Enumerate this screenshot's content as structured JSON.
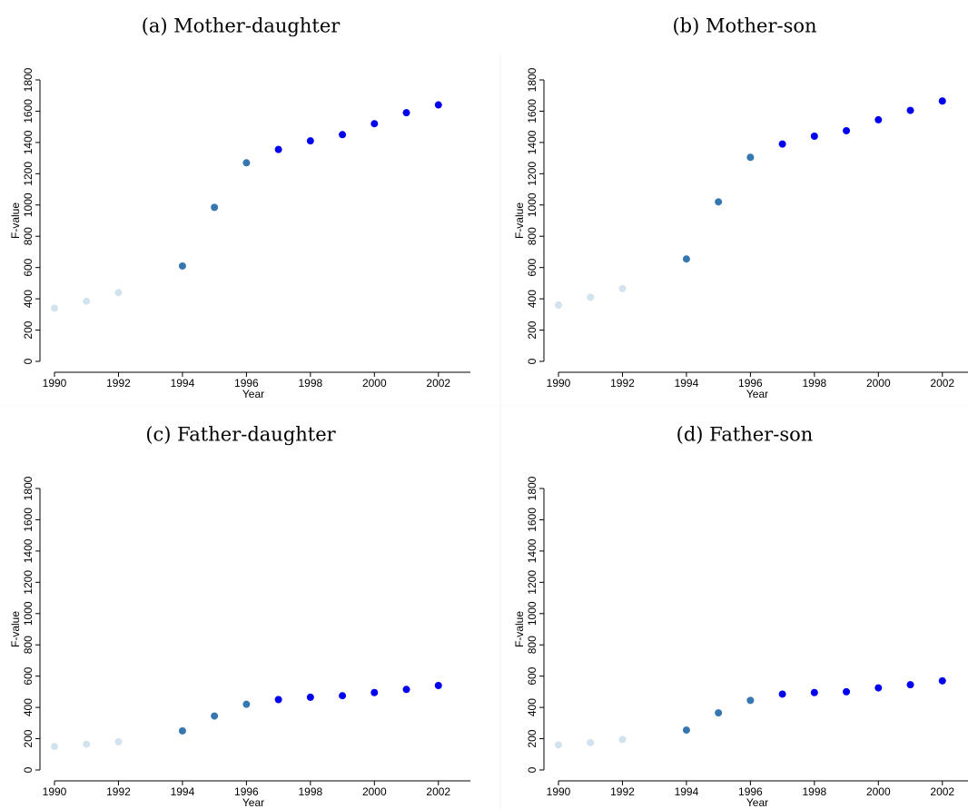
{
  "chart_data": [
    {
      "type": "scatter",
      "title": "(a) Mother-daughter",
      "x_label": "Year",
      "y_label": "F-value",
      "xlim": [
        1990,
        2003
      ],
      "xticks": [
        1990,
        1992,
        1994,
        1996,
        1998,
        2000,
        2002
      ],
      "ylim": [
        0,
        1800
      ],
      "yticks": [
        0,
        200,
        400,
        600,
        800,
        1000,
        1200,
        1400,
        1600,
        1800
      ],
      "series": [
        {
          "color": "#d3e3ee",
          "x": [
            1990,
            1991,
            1992
          ],
          "values": [
            340,
            385,
            440
          ]
        },
        {
          "color": "#3677b1",
          "x": [
            1994,
            1995,
            1996
          ],
          "values": [
            610,
            985,
            1270
          ]
        },
        {
          "color": "#0000ee",
          "x": [
            1997,
            1998,
            1999,
            2000,
            2001,
            2002
          ],
          "values": [
            1355,
            1410,
            1450,
            1520,
            1590,
            1640
          ]
        }
      ]
    },
    {
      "type": "scatter",
      "title": "(b) Mother-son",
      "x_label": "Year",
      "y_label": "F-value",
      "xlim": [
        1990,
        2003
      ],
      "xticks": [
        1990,
        1992,
        1994,
        1996,
        1998,
        2000,
        2002
      ],
      "ylim": [
        0,
        1800
      ],
      "yticks": [
        0,
        200,
        400,
        600,
        800,
        1000,
        1200,
        1400,
        1600,
        1800
      ],
      "series": [
        {
          "color": "#d3e3ee",
          "x": [
            1990,
            1991,
            1992
          ],
          "values": [
            360,
            410,
            465
          ]
        },
        {
          "color": "#3677b1",
          "x": [
            1994,
            1995,
            1996
          ],
          "values": [
            655,
            1020,
            1305
          ]
        },
        {
          "color": "#0000ee",
          "x": [
            1997,
            1998,
            1999,
            2000,
            2001,
            2002
          ],
          "values": [
            1390,
            1440,
            1475,
            1545,
            1605,
            1665
          ]
        }
      ]
    },
    {
      "type": "scatter",
      "title": "(c) Father-daughter",
      "x_label": "Year",
      "y_label": "F-value",
      "xlim": [
        1990,
        2003
      ],
      "xticks": [
        1990,
        1992,
        1994,
        1996,
        1998,
        2000,
        2002
      ],
      "ylim": [
        0,
        1800
      ],
      "yticks": [
        0,
        200,
        400,
        600,
        800,
        1000,
        1200,
        1400,
        1600,
        1800
      ],
      "series": [
        {
          "color": "#d3e3ee",
          "x": [
            1990,
            1991,
            1992
          ],
          "values": [
            150,
            165,
            180
          ]
        },
        {
          "color": "#3677b1",
          "x": [
            1994,
            1995,
            1996
          ],
          "values": [
            250,
            345,
            420
          ]
        },
        {
          "color": "#0000ee",
          "x": [
            1997,
            1998,
            1999,
            2000,
            2001,
            2002
          ],
          "values": [
            450,
            465,
            475,
            495,
            515,
            540
          ]
        }
      ]
    },
    {
      "type": "scatter",
      "title": "(d) Father-son",
      "x_label": "Year",
      "y_label": "F-value",
      "xlim": [
        1990,
        2003
      ],
      "xticks": [
        1990,
        1992,
        1994,
        1996,
        1998,
        2000,
        2002
      ],
      "ylim": [
        0,
        1800
      ],
      "yticks": [
        0,
        200,
        400,
        600,
        800,
        1000,
        1200,
        1400,
        1600,
        1800
      ],
      "series": [
        {
          "color": "#d3e3ee",
          "x": [
            1990,
            1991,
            1992
          ],
          "values": [
            160,
            175,
            195
          ]
        },
        {
          "color": "#3677b1",
          "x": [
            1994,
            1995,
            1996
          ],
          "values": [
            255,
            365,
            445
          ]
        },
        {
          "color": "#0000ee",
          "x": [
            1997,
            1998,
            1999,
            2000,
            2001,
            2002
          ],
          "values": [
            485,
            495,
            500,
            525,
            545,
            570
          ]
        }
      ]
    }
  ]
}
